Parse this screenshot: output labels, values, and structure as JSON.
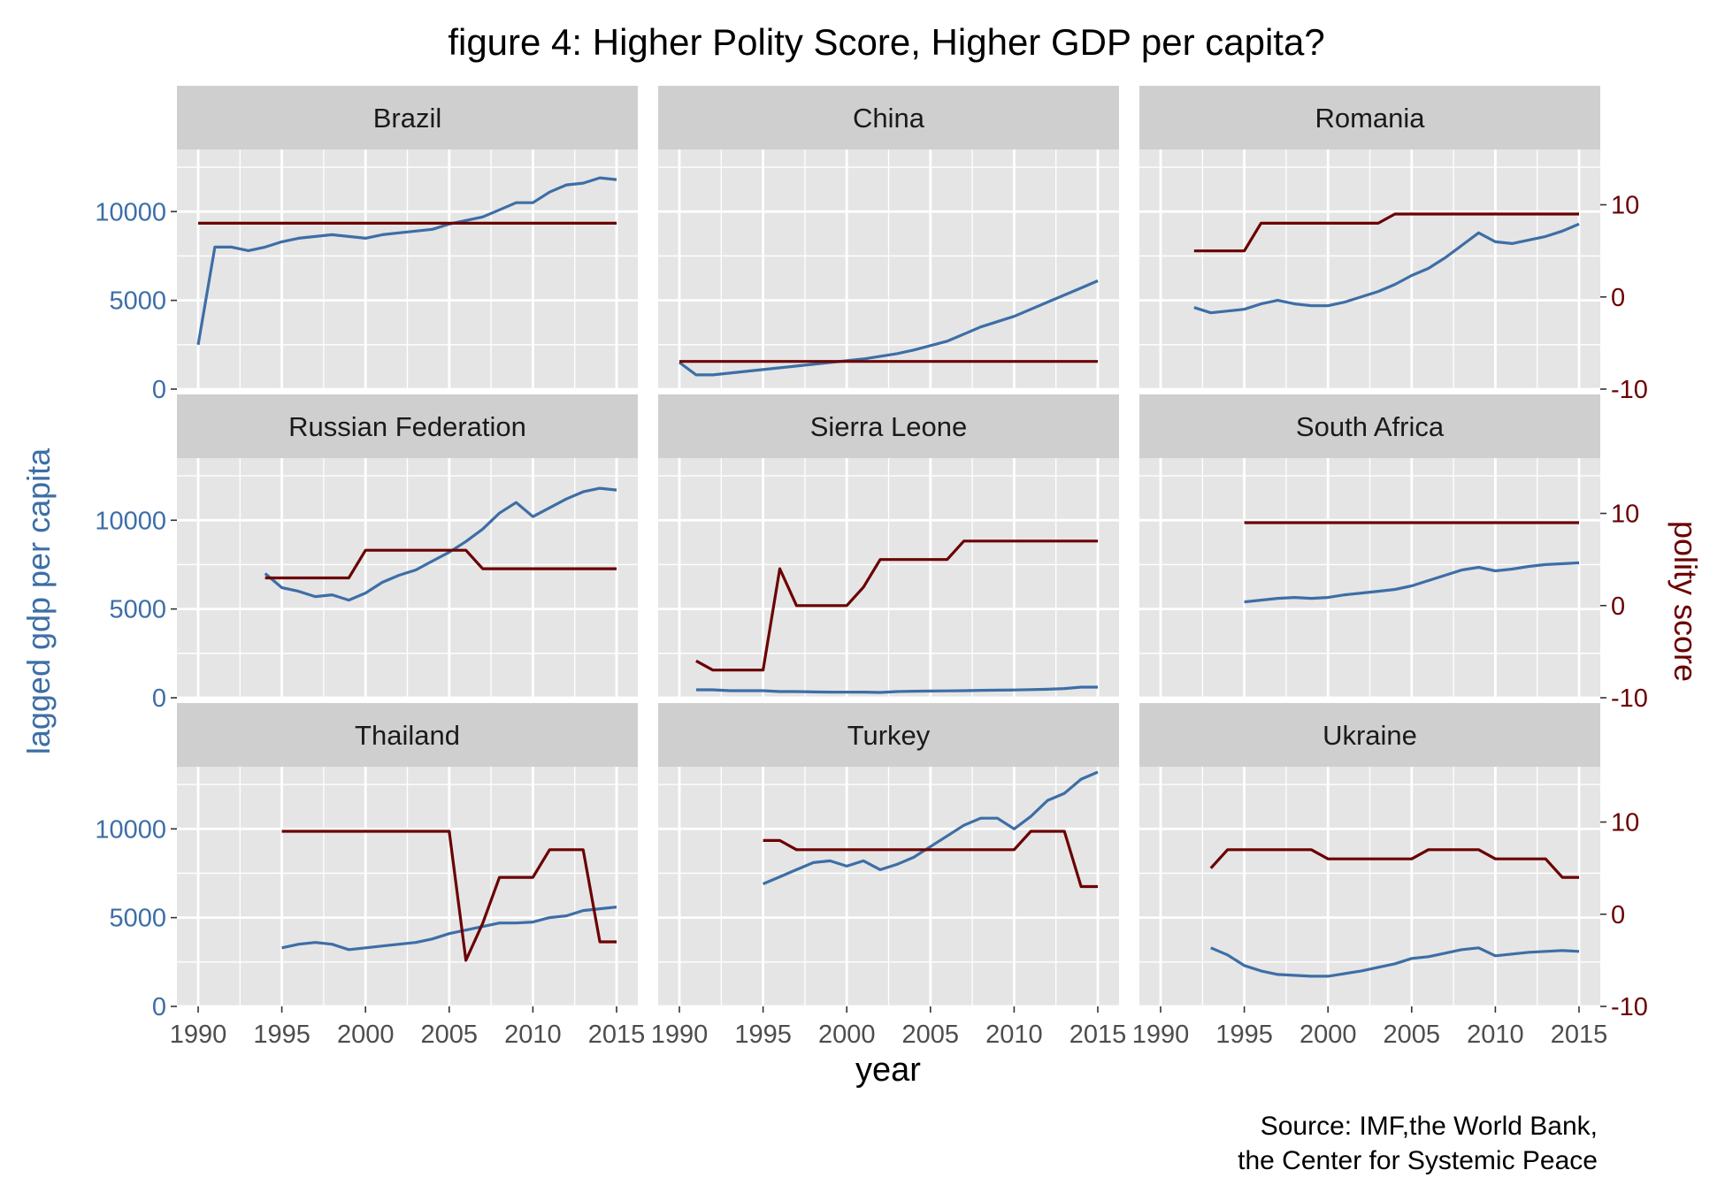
{
  "colors": {
    "gdp": "#3d6ea6",
    "polity": "#6b0000",
    "panel_bg": "#e5e5e5",
    "strip_bg": "#cfcfcf",
    "grid": "#ffffff",
    "axis_text": "#4d4d4d"
  },
  "title": "figure 4: Higher Polity Score, Higher GDP per capita?",
  "caption_lines": [
    "Source: IMF,the World Bank,",
    "the Center for Systemic Peace"
  ],
  "chart_data": {
    "type": "line",
    "title": "figure 4: Higher Polity Score, Higher GDP per capita?",
    "xlabel": "year",
    "ylabel": "lagged gdp per capita",
    "y2label": "polity score",
    "xlim": [
      1990,
      2015
    ],
    "ylim": [
      0,
      13500
    ],
    "y2lim": [
      -10,
      16
    ],
    "x_ticks": [
      1990,
      1995,
      2000,
      2005,
      2010,
      2015
    ],
    "y_ticks": [
      0,
      5000,
      10000
    ],
    "y2_ticks": [
      -10,
      0,
      10
    ],
    "grid": true,
    "series_names": [
      "lagged gdp per capita",
      "polity score"
    ],
    "panels": [
      {
        "name": "Brazil",
        "gdp": [
          [
            1990,
            2500
          ],
          [
            1991,
            8000
          ],
          [
            1992,
            8000
          ],
          [
            1993,
            7800
          ],
          [
            1994,
            8000
          ],
          [
            1995,
            8300
          ],
          [
            1996,
            8500
          ],
          [
            1997,
            8600
          ],
          [
            1998,
            8700
          ],
          [
            1999,
            8600
          ],
          [
            2000,
            8500
          ],
          [
            2001,
            8700
          ],
          [
            2002,
            8800
          ],
          [
            2003,
            8900
          ],
          [
            2004,
            9000
          ],
          [
            2005,
            9300
          ],
          [
            2006,
            9500
          ],
          [
            2007,
            9700
          ],
          [
            2008,
            10100
          ],
          [
            2009,
            10500
          ],
          [
            2010,
            10500
          ],
          [
            2011,
            11100
          ],
          [
            2012,
            11500
          ],
          [
            2013,
            11600
          ],
          [
            2014,
            11900
          ],
          [
            2015,
            11800
          ]
        ],
        "polity": [
          [
            1990,
            8
          ],
          [
            2015,
            8
          ]
        ]
      },
      {
        "name": "China",
        "gdp": [
          [
            1990,
            1500
          ],
          [
            1991,
            800
          ],
          [
            1992,
            800
          ],
          [
            1993,
            900
          ],
          [
            1994,
            1000
          ],
          [
            1995,
            1100
          ],
          [
            1996,
            1200
          ],
          [
            1997,
            1300
          ],
          [
            1998,
            1400
          ],
          [
            1999,
            1500
          ],
          [
            2000,
            1600
          ],
          [
            2001,
            1700
          ],
          [
            2002,
            1850
          ],
          [
            2003,
            2000
          ],
          [
            2004,
            2200
          ],
          [
            2005,
            2450
          ],
          [
            2006,
            2700
          ],
          [
            2007,
            3100
          ],
          [
            2008,
            3500
          ],
          [
            2009,
            3800
          ],
          [
            2010,
            4100
          ],
          [
            2011,
            4500
          ],
          [
            2012,
            4900
          ],
          [
            2013,
            5300
          ],
          [
            2014,
            5700
          ],
          [
            2015,
            6100
          ]
        ],
        "polity": [
          [
            1990,
            -7
          ],
          [
            2015,
            -7
          ]
        ]
      },
      {
        "name": "Romania",
        "gdp": [
          [
            1992,
            4600
          ],
          [
            1993,
            4300
          ],
          [
            1994,
            4400
          ],
          [
            1995,
            4500
          ],
          [
            1996,
            4800
          ],
          [
            1997,
            5000
          ],
          [
            1998,
            4800
          ],
          [
            1999,
            4700
          ],
          [
            2000,
            4700
          ],
          [
            2001,
            4900
          ],
          [
            2002,
            5200
          ],
          [
            2003,
            5500
          ],
          [
            2004,
            5900
          ],
          [
            2005,
            6400
          ],
          [
            2006,
            6800
          ],
          [
            2007,
            7400
          ],
          [
            2008,
            8100
          ],
          [
            2009,
            8800
          ],
          [
            2010,
            8300
          ],
          [
            2011,
            8200
          ],
          [
            2012,
            8400
          ],
          [
            2013,
            8600
          ],
          [
            2014,
            8900
          ],
          [
            2015,
            9300
          ]
        ],
        "polity": [
          [
            1992,
            5
          ],
          [
            1995,
            5
          ],
          [
            1996,
            8
          ],
          [
            2003,
            8
          ],
          [
            2004,
            9
          ],
          [
            2015,
            9
          ]
        ]
      },
      {
        "name": "Russian Federation",
        "gdp": [
          [
            1994,
            7000
          ],
          [
            1995,
            6200
          ],
          [
            1996,
            6000
          ],
          [
            1997,
            5700
          ],
          [
            1998,
            5800
          ],
          [
            1999,
            5500
          ],
          [
            2000,
            5900
          ],
          [
            2001,
            6500
          ],
          [
            2002,
            6900
          ],
          [
            2003,
            7200
          ],
          [
            2004,
            7700
          ],
          [
            2005,
            8200
          ],
          [
            2006,
            8800
          ],
          [
            2007,
            9500
          ],
          [
            2008,
            10400
          ],
          [
            2009,
            11000
          ],
          [
            2010,
            10200
          ],
          [
            2011,
            10700
          ],
          [
            2012,
            11200
          ],
          [
            2013,
            11600
          ],
          [
            2014,
            11800
          ],
          [
            2015,
            11700
          ]
        ],
        "polity": [
          [
            1994,
            3
          ],
          [
            1999,
            3
          ],
          [
            2000,
            6
          ],
          [
            2006,
            6
          ],
          [
            2007,
            4
          ],
          [
            2015,
            4
          ]
        ]
      },
      {
        "name": "Sierra Leone",
        "gdp": [
          [
            1991,
            450
          ],
          [
            1992,
            450
          ],
          [
            1993,
            400
          ],
          [
            1994,
            400
          ],
          [
            1995,
            400
          ],
          [
            1996,
            350
          ],
          [
            1997,
            350
          ],
          [
            1998,
            330
          ],
          [
            1999,
            320
          ],
          [
            2000,
            320
          ],
          [
            2001,
            320
          ],
          [
            2002,
            300
          ],
          [
            2003,
            350
          ],
          [
            2004,
            370
          ],
          [
            2005,
            380
          ],
          [
            2006,
            390
          ],
          [
            2007,
            400
          ],
          [
            2008,
            420
          ],
          [
            2009,
            430
          ],
          [
            2010,
            440
          ],
          [
            2011,
            460
          ],
          [
            2012,
            480
          ],
          [
            2013,
            520
          ],
          [
            2014,
            600
          ],
          [
            2015,
            600
          ]
        ],
        "polity": [
          [
            1991,
            -6
          ],
          [
            1992,
            -7
          ],
          [
            1995,
            -7
          ],
          [
            1996,
            4
          ],
          [
            1997,
            0
          ],
          [
            2000,
            0
          ],
          [
            2001,
            2
          ],
          [
            2002,
            5
          ],
          [
            2006,
            5
          ],
          [
            2007,
            7
          ],
          [
            2015,
            7
          ]
        ]
      },
      {
        "name": "South Africa",
        "gdp": [
          [
            1995,
            5400
          ],
          [
            1996,
            5500
          ],
          [
            1997,
            5600
          ],
          [
            1998,
            5650
          ],
          [
            1999,
            5600
          ],
          [
            2000,
            5650
          ],
          [
            2001,
            5800
          ],
          [
            2002,
            5900
          ],
          [
            2003,
            6000
          ],
          [
            2004,
            6100
          ],
          [
            2005,
            6300
          ],
          [
            2006,
            6600
          ],
          [
            2007,
            6900
          ],
          [
            2008,
            7200
          ],
          [
            2009,
            7350
          ],
          [
            2010,
            7150
          ],
          [
            2011,
            7250
          ],
          [
            2012,
            7400
          ],
          [
            2013,
            7500
          ],
          [
            2014,
            7550
          ],
          [
            2015,
            7600
          ]
        ],
        "polity": [
          [
            1995,
            9
          ],
          [
            2015,
            9
          ]
        ]
      },
      {
        "name": "Thailand",
        "gdp": [
          [
            1995,
            3300
          ],
          [
            1996,
            3500
          ],
          [
            1997,
            3600
          ],
          [
            1998,
            3500
          ],
          [
            1999,
            3200
          ],
          [
            2000,
            3300
          ],
          [
            2001,
            3400
          ],
          [
            2002,
            3500
          ],
          [
            2003,
            3600
          ],
          [
            2004,
            3800
          ],
          [
            2005,
            4100
          ],
          [
            2006,
            4300
          ],
          [
            2007,
            4500
          ],
          [
            2008,
            4700
          ],
          [
            2009,
            4700
          ],
          [
            2010,
            4750
          ],
          [
            2011,
            5000
          ],
          [
            2012,
            5100
          ],
          [
            2013,
            5400
          ],
          [
            2014,
            5500
          ],
          [
            2015,
            5600
          ]
        ],
        "polity": [
          [
            1995,
            9
          ],
          [
            2005,
            9
          ],
          [
            2006,
            -5
          ],
          [
            2007,
            -1
          ],
          [
            2008,
            4
          ],
          [
            2010,
            4
          ],
          [
            2011,
            7
          ],
          [
            2013,
            7
          ],
          [
            2014,
            -3
          ],
          [
            2015,
            -3
          ]
        ]
      },
      {
        "name": "Turkey",
        "gdp": [
          [
            1995,
            6900
          ],
          [
            1996,
            7300
          ],
          [
            1997,
            7700
          ],
          [
            1998,
            8100
          ],
          [
            1999,
            8200
          ],
          [
            2000,
            7900
          ],
          [
            2001,
            8200
          ],
          [
            2002,
            7700
          ],
          [
            2003,
            8000
          ],
          [
            2004,
            8400
          ],
          [
            2005,
            9000
          ],
          [
            2006,
            9600
          ],
          [
            2007,
            10200
          ],
          [
            2008,
            10600
          ],
          [
            2009,
            10600
          ],
          [
            2010,
            10000
          ],
          [
            2011,
            10700
          ],
          [
            2012,
            11600
          ],
          [
            2013,
            12000
          ],
          [
            2014,
            12800
          ],
          [
            2015,
            13200
          ]
        ],
        "polity": [
          [
            1995,
            8
          ],
          [
            1996,
            8
          ],
          [
            1997,
            7
          ],
          [
            2010,
            7
          ],
          [
            2011,
            9
          ],
          [
            2013,
            9
          ],
          [
            2014,
            3
          ],
          [
            2015,
            3
          ]
        ]
      },
      {
        "name": "Ukraine",
        "gdp": [
          [
            1993,
            3300
          ],
          [
            1994,
            2900
          ],
          [
            1995,
            2300
          ],
          [
            1996,
            2000
          ],
          [
            1997,
            1800
          ],
          [
            1998,
            1750
          ],
          [
            1999,
            1700
          ],
          [
            2000,
            1700
          ],
          [
            2001,
            1850
          ],
          [
            2002,
            2000
          ],
          [
            2003,
            2200
          ],
          [
            2004,
            2400
          ],
          [
            2005,
            2700
          ],
          [
            2006,
            2800
          ],
          [
            2007,
            3000
          ],
          [
            2008,
            3200
          ],
          [
            2009,
            3300
          ],
          [
            2010,
            2850
          ],
          [
            2011,
            2950
          ],
          [
            2012,
            3050
          ],
          [
            2013,
            3100
          ],
          [
            2014,
            3150
          ],
          [
            2015,
            3100
          ]
        ],
        "polity": [
          [
            1993,
            5
          ],
          [
            1994,
            7
          ],
          [
            1999,
            7
          ],
          [
            2000,
            6
          ],
          [
            2005,
            6
          ],
          [
            2006,
            7
          ],
          [
            2009,
            7
          ],
          [
            2010,
            6
          ],
          [
            2013,
            6
          ],
          [
            2014,
            4
          ],
          [
            2015,
            4
          ]
        ]
      }
    ]
  }
}
